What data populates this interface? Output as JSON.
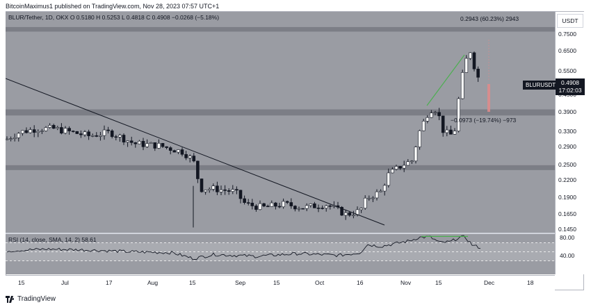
{
  "publisher_line": "BitcoinMaximus1 published on TradingView.com, Nov 28, 2023 07:57 UTC+1",
  "symbol_line": "BLUR/Tether, 1D, OKX  O 0.5180  H 0.5253  L 0.4818  C 0.4908  −0.0268 (−5.18%)",
  "rsi_line": "RSI (14, close, SMA, 14, 2)  58.61",
  "currency": "USDT",
  "symbol_tag": "BLURUSDT",
  "last_price": "0.4908",
  "countdown": "17:02:03",
  "measure_top": "0.2943 (60.23%) 2943",
  "measure_mid": "−0.0973 (−19.74%) −973",
  "footer_brand": "TradingView",
  "colors": {
    "pane_bg": "#9a9ca3",
    "band": "#7c7e86",
    "up": "#ffffff",
    "down": "#131722",
    "green_line": "#4caf50",
    "red_measure": "#e08b8b"
  },
  "chart_data": {
    "type": "candlestick",
    "price_axis": {
      "scale": "log",
      "ticks": [
        0.75,
        0.65,
        0.55,
        0.45,
        0.39,
        0.33,
        0.29,
        0.25,
        0.22,
        0.19,
        0.165,
        0.145
      ],
      "tick_labels": [
        "0.7500",
        "0.6500",
        "0.5500",
        "0.4500",
        "0.3900",
        "0.3300",
        "0.2900",
        "0.2500",
        "0.2200",
        "0.1900",
        "0.1650",
        "0.1450"
      ]
    },
    "x_labels": [
      "15",
      "Jul",
      "17",
      "Aug",
      "15",
      "Sep",
      "15",
      "Oct",
      "16",
      "Nov",
      "15",
      "Dec",
      "18"
    ],
    "horizontal_zones": [
      {
        "low": 0.77,
        "high": 0.8
      },
      {
        "low": 0.38,
        "high": 0.4
      },
      {
        "low": 0.24,
        "high": 0.25
      }
    ],
    "rsi": {
      "ticks": [
        80,
        40
      ],
      "tick_labels": [
        "80.00",
        "40.00"
      ],
      "dashed_levels": [
        70,
        50,
        30
      ],
      "last": 58.61
    }
  }
}
